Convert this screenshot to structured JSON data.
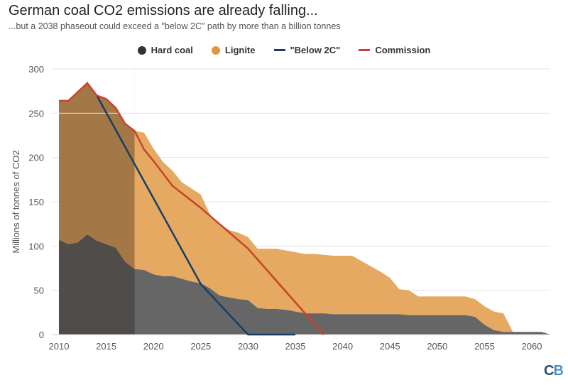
{
  "title": "German coal CO2 emissions are already falling...",
  "subtitle": "...but a 2038 phaseout could exceed a \"below 2C\" path by more than a billion tonnes",
  "logo": {
    "c": "C",
    "b": "B",
    "colors": [
      "#2b4d6b",
      "#4a90c8"
    ]
  },
  "chart_data": {
    "type": "area",
    "title": "German coal CO2 emissions are already falling...",
    "ylabel": "Millions of tonnes of CO2",
    "xlabel": "",
    "xlim": [
      2010,
      2062
    ],
    "ylim": [
      0,
      300
    ],
    "xticks": [
      2010,
      2015,
      2020,
      2025,
      2030,
      2035,
      2040,
      2045,
      2050,
      2055,
      2060
    ],
    "yticks": [
      0,
      50,
      100,
      150,
      200,
      250,
      300
    ],
    "grid": true,
    "legend_position": "top",
    "historical_shading": [
      2010,
      2018
    ],
    "x": [
      2010,
      2011,
      2012,
      2013,
      2014,
      2015,
      2016,
      2017,
      2018,
      2019,
      2020,
      2021,
      2022,
      2023,
      2024,
      2025,
      2026,
      2027,
      2028,
      2029,
      2030,
      2031,
      2032,
      2033,
      2034,
      2035,
      2036,
      2037,
      2038,
      2039,
      2040,
      2041,
      2042,
      2043,
      2044,
      2045,
      2046,
      2047,
      2048,
      2049,
      2050,
      2051,
      2052,
      2053,
      2054,
      2055,
      2056,
      2057,
      2058,
      2059,
      2060,
      2061,
      2062
    ],
    "series": [
      {
        "name": "Hard coal",
        "kind": "area",
        "color": "#666666",
        "values": [
          107,
          102,
          104,
          113,
          106,
          102,
          98,
          82,
          74,
          73,
          68,
          66,
          66,
          63,
          60,
          58,
          52,
          44,
          42,
          40,
          39,
          30,
          29,
          29,
          28,
          26,
          24,
          24,
          24,
          23,
          23,
          23,
          23,
          23,
          23,
          23,
          23,
          22,
          22,
          22,
          22,
          22,
          22,
          22,
          20,
          11,
          5,
          3,
          3,
          3,
          3,
          3,
          0
        ]
      },
      {
        "name": "Lignite",
        "kind": "area",
        "color": "#e5a962",
        "values": [
          157,
          162,
          170,
          171,
          164,
          164,
          158,
          156,
          156,
          155,
          142,
          129,
          119,
          109,
          105,
          100,
          83,
          81,
          76,
          75,
          71,
          67,
          68,
          68,
          67,
          67,
          67,
          67,
          66,
          66,
          66,
          66,
          60,
          54,
          48,
          41,
          28,
          28,
          21,
          21,
          21,
          21,
          21,
          21,
          20,
          21,
          21,
          21,
          0,
          0,
          0,
          0,
          0
        ]
      },
      {
        "name": "\"Below 2C\"",
        "kind": "line",
        "color": "#163f66",
        "points": [
          [
            2014,
            270
          ],
          [
            2025,
            57
          ],
          [
            2030,
            0
          ],
          [
            2035,
            0
          ]
        ]
      },
      {
        "name": "Commission",
        "kind": "line",
        "color": "#c8432b",
        "points": [
          [
            2010,
            264
          ],
          [
            2011,
            264
          ],
          [
            2012,
            274
          ],
          [
            2013,
            284
          ],
          [
            2014,
            270
          ],
          [
            2015,
            266
          ],
          [
            2016,
            256
          ],
          [
            2017,
            238
          ],
          [
            2018,
            230
          ],
          [
            2019,
            209
          ],
          [
            2020,
            196
          ],
          [
            2022,
            168
          ],
          [
            2025,
            143
          ],
          [
            2030,
            97
          ],
          [
            2038,
            0
          ]
        ]
      }
    ]
  }
}
